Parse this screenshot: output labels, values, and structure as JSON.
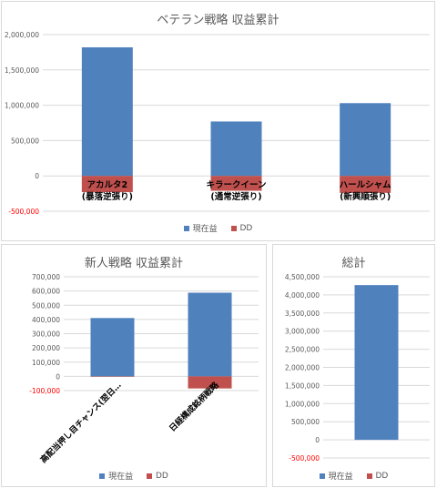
{
  "colors": {
    "current": "#4f81bd",
    "dd": "#c0504d",
    "grid": "#d9d9d9",
    "text": "#595959",
    "negative": "#ff0000"
  },
  "legend": {
    "current": "現在益",
    "dd": "DD"
  },
  "chart_data": [
    {
      "type": "bar",
      "stacked": true,
      "title": "ベテラン戦略 収益累計",
      "categories": [
        [
          "アカルタ2",
          "(暴落逆張り)"
        ],
        [
          "キラークイーン",
          "(通常逆張り)"
        ],
        [
          "ハールシャム",
          "(新興順張り)"
        ]
      ],
      "series": [
        {
          "name": "現在益",
          "values": [
            1820000,
            770000,
            1030000
          ]
        },
        {
          "name": "DD",
          "values": [
            -230000,
            -210000,
            -240000
          ]
        }
      ],
      "ylim": [
        -500000,
        2000000
      ],
      "yticks": [
        -500000,
        0,
        500000,
        1000000,
        1500000,
        2000000
      ],
      "ytick_labels": [
        "-500,000",
        "0",
        "500,000",
        "1,000,000",
        "1,500,000",
        "2,000,000"
      ],
      "grid": true,
      "legend": "bottom"
    },
    {
      "type": "bar",
      "stacked": true,
      "title": "新人戦略 収益累計",
      "categories": [
        [
          "高配当押し目チャンス(翌日…"
        ],
        [
          "日経構成銘柄戦略"
        ]
      ],
      "series": [
        {
          "name": "現在益",
          "values": [
            410000,
            588000
          ]
        },
        {
          "name": "DD",
          "values": [
            -3000,
            -85000
          ]
        }
      ],
      "ylim": [
        -100000,
        700000
      ],
      "yticks": [
        -100000,
        0,
        100000,
        200000,
        300000,
        400000,
        500000,
        600000,
        700000
      ],
      "ytick_labels": [
        "-100,000",
        "0",
        "100,000",
        "200,000",
        "300,000",
        "400,000",
        "500,000",
        "600,000",
        "700,000"
      ],
      "grid": true,
      "legend": "bottom"
    },
    {
      "type": "bar",
      "stacked": true,
      "title": "総計",
      "categories": [
        [
          ""
        ]
      ],
      "series": [
        {
          "name": "現在益",
          "values": [
            4270000
          ]
        },
        {
          "name": "DD",
          "values": [
            0
          ]
        }
      ],
      "ylim": [
        -500000,
        4500000
      ],
      "yticks": [
        -500000,
        0,
        500000,
        1000000,
        1500000,
        2000000,
        2500000,
        3000000,
        3500000,
        4000000,
        4500000
      ],
      "ytick_labels": [
        "-500,000",
        "0",
        "500,000",
        "1,000,000",
        "1,500,000",
        "2,000,000",
        "2,500,000",
        "3,000,000",
        "3,500,000",
        "4,000,000",
        "4,500,000"
      ],
      "grid": true,
      "legend": "bottom"
    }
  ]
}
